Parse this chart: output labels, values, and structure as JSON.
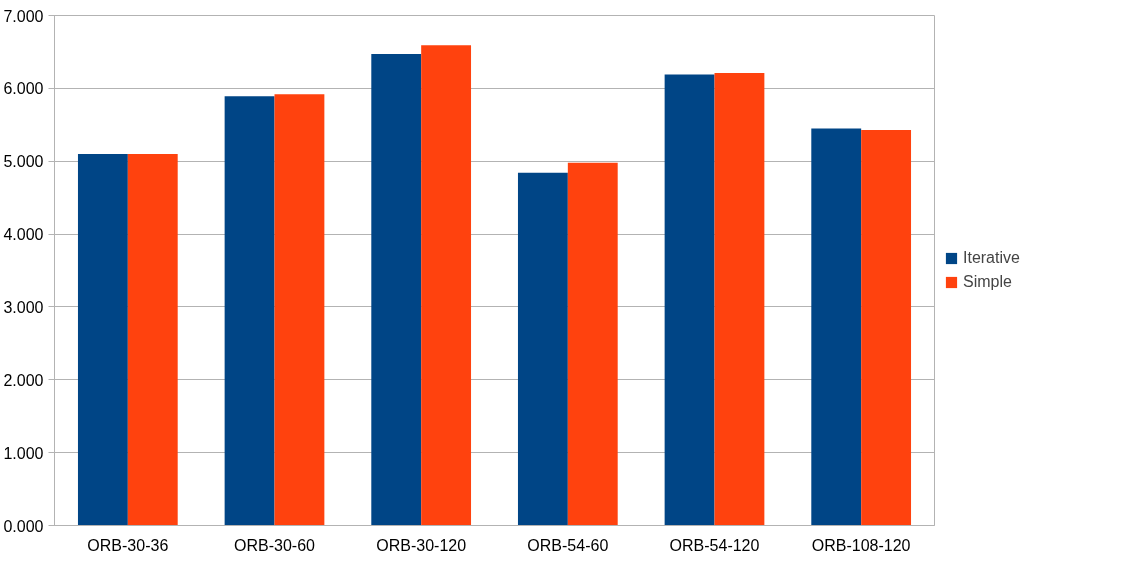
{
  "chart_data": {
    "type": "bar",
    "categories": [
      "ORB-30-36",
      "ORB-30-60",
      "ORB-30-120",
      "ORB-54-60",
      "ORB-54-120",
      "ORB-108-120"
    ],
    "series": [
      {
        "name": "Iterative",
        "color": "#004586",
        "values": [
          5.1,
          5.89,
          6.47,
          4.84,
          6.19,
          5.45
        ]
      },
      {
        "name": "Simple",
        "color": "#ff420e",
        "values": [
          5.1,
          5.92,
          6.59,
          4.98,
          6.21,
          5.43
        ]
      }
    ],
    "ylim": [
      0,
      7
    ],
    "yticks": [
      {
        "value": 0,
        "label": "0.000"
      },
      {
        "value": 1,
        "label": "1.000"
      },
      {
        "value": 2,
        "label": "2.000"
      },
      {
        "value": 3,
        "label": "3.000"
      },
      {
        "value": 4,
        "label": "4.000"
      },
      {
        "value": 5,
        "label": "5.000"
      },
      {
        "value": 6,
        "label": "6.000"
      },
      {
        "value": 7,
        "label": "7.000"
      }
    ],
    "grid": "y",
    "legend": "right"
  }
}
